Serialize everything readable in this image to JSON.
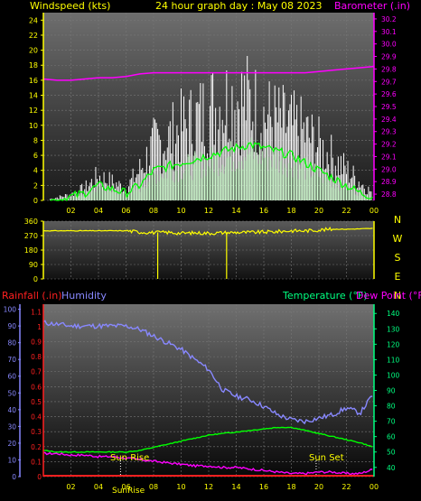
{
  "header": {
    "left_label": "Windspeed (kts)",
    "center_label": "24 hour graph day : May 08 2023",
    "right_label": "Barometer (.in)"
  },
  "colors": {
    "white": "#ffffff",
    "yellow": "#ffff00",
    "magenta": "#ff00ff",
    "green": "#00ff00",
    "humidity": "#8888ff",
    "rain_red": "#ff2020",
    "dew_pink": "#ff00ff",
    "bg_top": "#555555",
    "bg_bottom": "#000000"
  },
  "chart_data": [
    {
      "type": "line",
      "name": "wind_and_barometer",
      "left_axis": {
        "label": "Windspeed (kts)",
        "ticks": [
          0,
          2,
          4,
          6,
          8,
          10,
          12,
          14,
          16,
          18,
          20,
          22,
          24
        ],
        "ylim": [
          0,
          25
        ]
      },
      "right_axis": {
        "label": "Barometer (.in)",
        "ticks": [
          28.8,
          28.9,
          29.0,
          29.1,
          29.2,
          29.3,
          29.4,
          29.5,
          29.6,
          29.7,
          29.8,
          29.9,
          30.0,
          30.1,
          30.2
        ],
        "ylim": [
          28.75,
          30.25
        ]
      },
      "x_ticks": [
        "02",
        "04",
        "06",
        "08",
        "10",
        "12",
        "14",
        "16",
        "18",
        "20",
        "22",
        "00"
      ],
      "x_hours": [
        0,
        1,
        2,
        3,
        4,
        5,
        6,
        7,
        8,
        9,
        10,
        11,
        12,
        13,
        14,
        15,
        16,
        17,
        18,
        19,
        20,
        21,
        22,
        23,
        24
      ],
      "series": [
        {
          "name": "Gust",
          "color": "#ffffff",
          "values": [
            0,
            0.5,
            1,
            2,
            4,
            3,
            2,
            5,
            9,
            10,
            12,
            13,
            15,
            16,
            17,
            16,
            14,
            13,
            12,
            11,
            9,
            7,
            5,
            3,
            1
          ]
        },
        {
          "name": "Average",
          "color": "#00ff00",
          "values": [
            0,
            0,
            0.5,
            1,
            2,
            1.5,
            1,
            2,
            4,
            4.5,
            5,
            5.5,
            6,
            6.5,
            7,
            7.5,
            7,
            6.5,
            6,
            5,
            4,
            3,
            2,
            1,
            0.5
          ]
        },
        {
          "name": "Barometer",
          "color": "#ff00ff",
          "axis": "right",
          "values": [
            29.72,
            29.71,
            29.71,
            29.72,
            29.73,
            29.73,
            29.74,
            29.76,
            29.77,
            29.77,
            29.77,
            29.77,
            29.77,
            29.77,
            29.77,
            29.77,
            29.77,
            29.77,
            29.77,
            29.77,
            29.78,
            29.79,
            29.8,
            29.81,
            29.82
          ]
        }
      ]
    },
    {
      "type": "line",
      "name": "wind_direction",
      "left_axis": {
        "ticks": [
          0,
          90,
          180,
          270,
          360
        ],
        "ylim": [
          0,
          360
        ]
      },
      "right_labels": [
        "N",
        "W",
        "S",
        "E",
        "N"
      ],
      "x_ticks": [
        "02",
        "04",
        "06",
        "08",
        "10",
        "12",
        "14",
        "16",
        "18",
        "20",
        "22",
        "00"
      ],
      "series": [
        {
          "name": "Direction",
          "color": "#ffff00",
          "values": [
            300,
            300,
            300,
            300,
            300,
            300,
            300,
            292,
            289,
            290,
            285,
            287,
            285,
            288,
            290,
            290,
            292,
            295,
            300,
            300,
            305,
            310,
            310,
            312,
            315
          ]
        }
      ]
    },
    {
      "type": "line",
      "name": "temp_humidity_rain",
      "header": {
        "rainfall": "Rainfall (.in)",
        "humidity": "Humidity",
        "temperature": "Temperature (°F)",
        "dewpoint": "Dew Point (°F)"
      },
      "rain_axis": {
        "ticks": [
          0,
          0.1,
          0.2,
          0.3,
          0.4,
          0.5,
          0.6,
          0.7,
          0.8,
          0.9,
          1,
          1.1
        ],
        "ylim": [
          0,
          1.15
        ]
      },
      "humidity_axis": {
        "ticks": [
          0,
          10,
          20,
          30,
          40,
          50,
          60,
          70,
          80,
          90,
          100
        ],
        "ylim": [
          0,
          103
        ]
      },
      "temp_axis": {
        "ticks": [
          40,
          50,
          60,
          70,
          80,
          90,
          100,
          110,
          120,
          130,
          140
        ],
        "ylim": [
          34,
          146
        ]
      },
      "x_ticks": [
        "02",
        "04",
        "06",
        "08",
        "10",
        "12",
        "14",
        "16",
        "18",
        "20",
        "22",
        "00"
      ],
      "annotations": [
        {
          "label": "Sun Rise"
        },
        {
          "label": "Sun Set"
        }
      ],
      "bottom_label": "SunRise",
      "series": [
        {
          "name": "Humidity",
          "color": "#8888ff",
          "axis": "humidity",
          "values": [
            92,
            91,
            90,
            90,
            90,
            90,
            90,
            88,
            84,
            80,
            76,
            70,
            64,
            52,
            48,
            46,
            42,
            37,
            34,
            33,
            35,
            37,
            41,
            38,
            50
          ]
        },
        {
          "name": "Temperature",
          "color": "#00ff00",
          "axis": "temp",
          "values": [
            51,
            50,
            50,
            50,
            50,
            50,
            50,
            51,
            53,
            55,
            57,
            59,
            61,
            62,
            63,
            64,
            65,
            66,
            66,
            64,
            62,
            60,
            58,
            56,
            53
          ]
        },
        {
          "name": "Dew Point",
          "color": "#ff00ff",
          "axis": "temp",
          "values": [
            49,
            49,
            48,
            48,
            47,
            47,
            46,
            45,
            44,
            43,
            42,
            41,
            41,
            40,
            40,
            39,
            38,
            37,
            36,
            36,
            37,
            37,
            36,
            36,
            39
          ]
        },
        {
          "name": "Rainfall",
          "color": "#ff2020",
          "axis": "rain",
          "values": [
            0,
            0,
            0,
            0,
            0,
            0,
            0,
            0,
            0,
            0,
            0,
            0,
            0,
            0,
            0,
            0,
            0,
            0,
            0,
            0,
            0,
            0,
            0,
            0,
            0
          ]
        }
      ]
    }
  ]
}
